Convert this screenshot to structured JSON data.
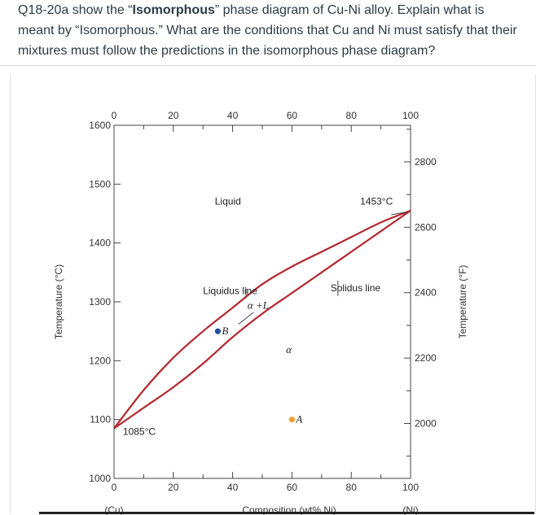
{
  "question": {
    "prefix": "Q18-20a show the “",
    "bold": "Isomorphous",
    "suffix": "” phase diagram of Cu-Ni alloy. Explain what is meant by “Isomorphous.” What are the conditions that Cu and Ni must satisfy that their mixtures must follow the predictions in the isomorphous phase diagram?"
  },
  "chart_data": {
    "type": "line",
    "xlabel": "Composition (wt% Ni)",
    "ylabel": "Temperature (°C)",
    "y2label": "Temperature (°F)",
    "xlim": [
      0,
      100
    ],
    "ylim": [
      1000,
      1600
    ],
    "y2lim": [
      1832,
      2912
    ],
    "x_ticks": [
      0,
      20,
      40,
      60,
      80,
      100
    ],
    "y_ticks": [
      1000,
      1100,
      1200,
      1300,
      1400,
      1500,
      1600
    ],
    "y2_ticks": [
      2000,
      2200,
      2400,
      2600,
      2800
    ],
    "end_labels": {
      "left": "(Cu)",
      "right": "(Ni)"
    },
    "series": [
      {
        "name": "Liquidus line",
        "color": "#b2282e",
        "x": [
          0,
          10,
          20,
          30,
          40,
          50,
          60,
          70,
          80,
          90,
          100
        ],
        "y": [
          1085,
          1150,
          1205,
          1250,
          1290,
          1330,
          1360,
          1385,
          1410,
          1435,
          1455
        ]
      },
      {
        "name": "Solidus line",
        "color": "#b2282e",
        "x": [
          0,
          10,
          20,
          30,
          40,
          50,
          60,
          70,
          80,
          90,
          100
        ],
        "y": [
          1085,
          1120,
          1155,
          1195,
          1240,
          1280,
          1315,
          1350,
          1385,
          1420,
          1455
        ]
      }
    ],
    "annotations": [
      {
        "text": "Liquid",
        "x": 34,
        "y": 1465
      },
      {
        "text": "Liquidus line",
        "x": 30,
        "y": 1313
      },
      {
        "text": "Solidus line",
        "x": 73,
        "y": 1318
      },
      {
        "text": "α +L",
        "x": 45,
        "y": 1288
      },
      {
        "text": "α",
        "x": 58,
        "y": 1213
      },
      {
        "text": "1453°C",
        "x": 83,
        "y": 1465
      },
      {
        "text": "1085°C",
        "x": 3,
        "y": 1074
      }
    ],
    "points": [
      {
        "label": "B",
        "x": 35,
        "y": 1250,
        "color": "#1f4e9c"
      },
      {
        "label": "A",
        "x": 60,
        "y": 1100,
        "color": "#f0a030"
      }
    ]
  }
}
